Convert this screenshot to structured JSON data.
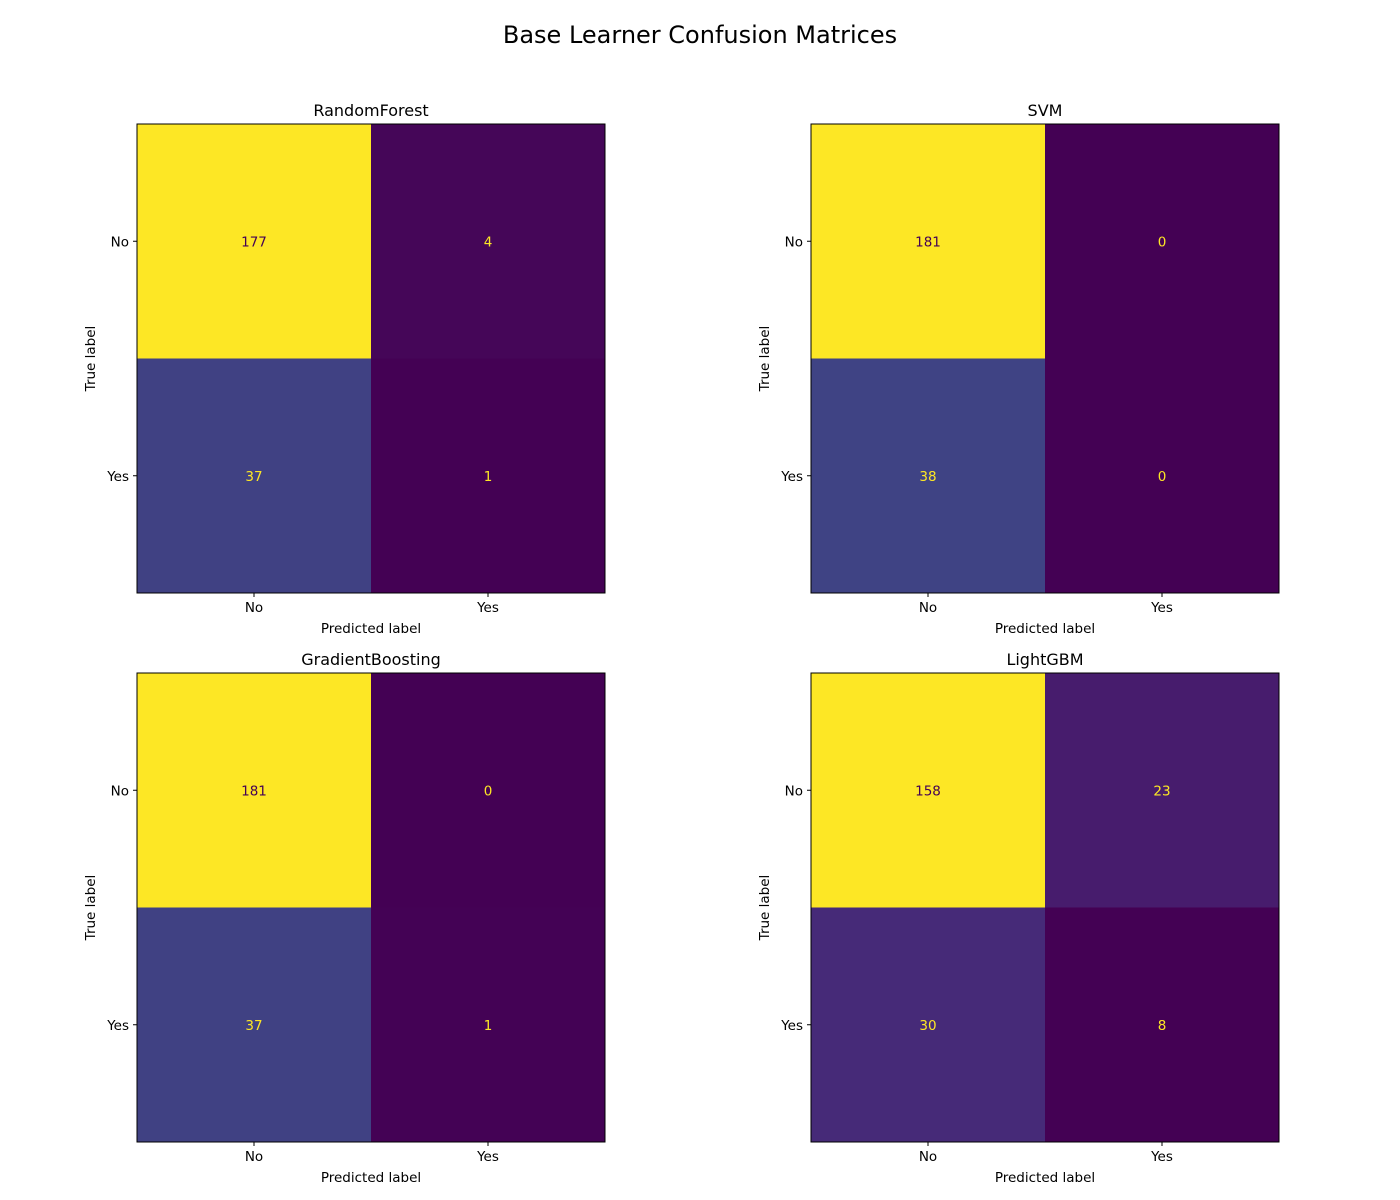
{
  "figure": {
    "title": "Base Learner Confusion Matrices"
  },
  "chart_data": [
    {
      "type": "heatmap",
      "title": "RandomForest",
      "xlabel": "Predicted label",
      "ylabel": "True label",
      "x_categories": [
        "No",
        "Yes"
      ],
      "y_categories": [
        "No",
        "Yes"
      ],
      "matrix": [
        [
          177,
          4
        ],
        [
          37,
          1
        ]
      ],
      "colormap": "viridis",
      "colorbar": false,
      "grid": false
    },
    {
      "type": "heatmap",
      "title": "SVM",
      "xlabel": "Predicted label",
      "ylabel": "True label",
      "x_categories": [
        "No",
        "Yes"
      ],
      "y_categories": [
        "No",
        "Yes"
      ],
      "matrix": [
        [
          181,
          0
        ],
        [
          38,
          0
        ]
      ],
      "colormap": "viridis",
      "colorbar": false,
      "grid": false
    },
    {
      "type": "heatmap",
      "title": "GradientBoosting",
      "xlabel": "Predicted label",
      "ylabel": "True label",
      "x_categories": [
        "No",
        "Yes"
      ],
      "y_categories": [
        "No",
        "Yes"
      ],
      "matrix": [
        [
          181,
          0
        ],
        [
          37,
          1
        ]
      ],
      "colormap": "viridis",
      "colorbar": false,
      "grid": false
    },
    {
      "type": "heatmap",
      "title": "LightGBM",
      "xlabel": "Predicted label",
      "ylabel": "True label",
      "x_categories": [
        "No",
        "Yes"
      ],
      "y_categories": [
        "No",
        "Yes"
      ],
      "matrix": [
        [
          158,
          23
        ],
        [
          30,
          8
        ]
      ],
      "colormap": "viridis",
      "colorbar": false,
      "grid": false
    }
  ],
  "colors": {
    "text_on_dark": "#fde725",
    "text_on_light": "#440154",
    "axes_frame": "#000000"
  }
}
